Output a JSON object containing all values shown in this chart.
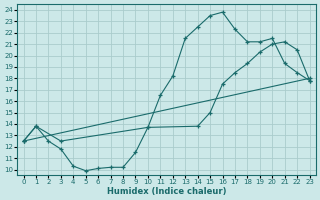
{
  "xlabel": "Humidex (Indice chaleur)",
  "bg_color": "#cce8e8",
  "grid_color": "#aacccc",
  "line_color": "#1a6b6b",
  "xlim": [
    -0.5,
    23.5
  ],
  "ylim": [
    9.5,
    24.5
  ],
  "xticks": [
    0,
    1,
    2,
    3,
    4,
    5,
    6,
    7,
    8,
    9,
    10,
    11,
    12,
    13,
    14,
    15,
    16,
    17,
    18,
    19,
    20,
    21,
    22,
    23
  ],
  "yticks": [
    10,
    11,
    12,
    13,
    14,
    15,
    16,
    17,
    18,
    19,
    20,
    21,
    22,
    23,
    24
  ],
  "curve1_x": [
    0,
    1,
    2,
    3,
    4,
    5,
    6,
    7,
    8,
    9,
    10,
    11,
    12,
    13,
    14,
    15,
    16,
    17,
    18,
    19,
    20,
    21,
    22,
    23
  ],
  "curve1_y": [
    12.5,
    13.8,
    12.5,
    11.8,
    10.3,
    9.9,
    10.1,
    10.2,
    10.2,
    11.5,
    13.7,
    16.5,
    18.2,
    21.5,
    22.5,
    23.5,
    23.8,
    22.3,
    21.2,
    21.2,
    21.5,
    19.3,
    18.5,
    17.8
  ],
  "curve2_x": [
    0,
    1,
    3,
    10,
    14,
    15,
    16,
    17,
    18,
    19,
    20,
    21,
    22,
    23
  ],
  "curve2_y": [
    12.5,
    13.8,
    12.5,
    13.7,
    13.8,
    15.0,
    17.5,
    18.5,
    19.3,
    20.3,
    21.0,
    21.2,
    20.5,
    17.8
  ],
  "curve3_x": [
    0,
    23
  ],
  "curve3_y": [
    12.5,
    18.0
  ]
}
